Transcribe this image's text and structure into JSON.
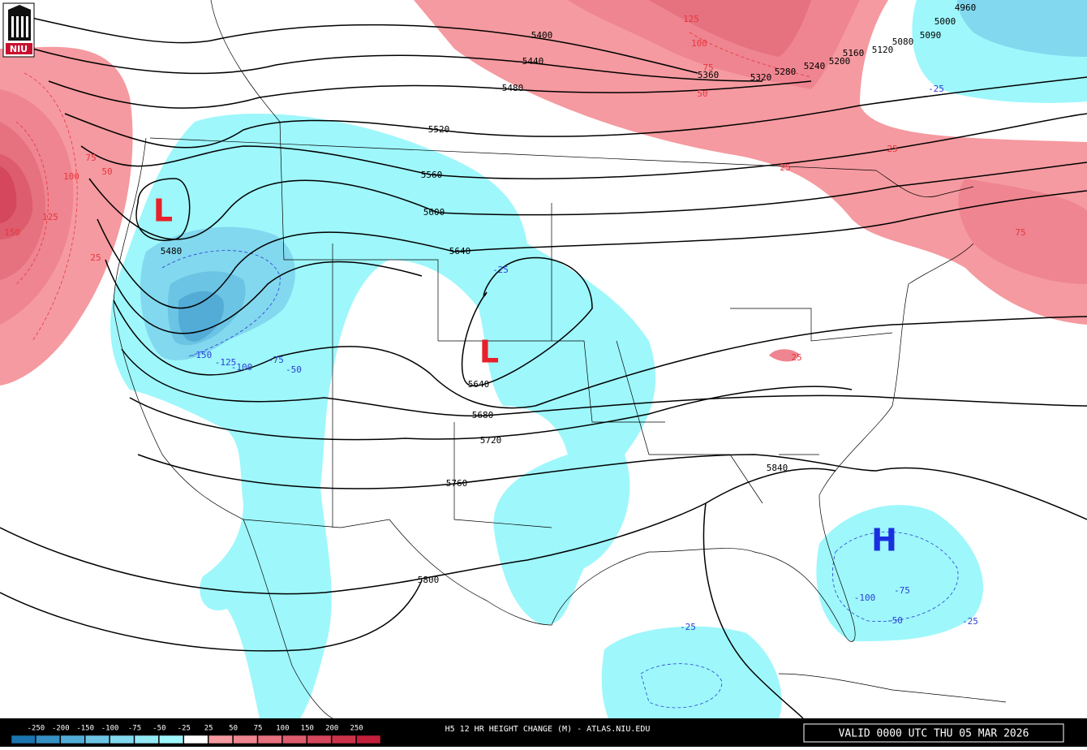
{
  "logo": "NIU",
  "title": "H5 12 HR HEIGHT CHANGE (M) - ATLAS.NIU.EDU",
  "valid_time": "VALID 0000 UTC THU 05 MAR 2026",
  "legend": {
    "labels": [
      -250,
      -200,
      -150,
      -100,
      -75,
      -50,
      -25,
      25,
      50,
      75,
      100,
      150,
      200,
      250
    ],
    "colors": [
      "#1b74ad",
      "#3590c4",
      "#52acd6",
      "#6cc4e4",
      "#82d8ee",
      "#93e8f5",
      "#9ef7fb",
      "#ffffff",
      "#f59aa0",
      "#ee8590",
      "#e6717f",
      "#dd5c6d",
      "#d4475c",
      "#cb334b",
      "#c21f3a"
    ]
  },
  "height_contour_labels": [
    5400,
    5440,
    5480,
    5520,
    5560,
    5600,
    5640,
    5480,
    5640,
    5680,
    5720,
    5760,
    5800,
    5840,
    5360,
    5320,
    5280,
    5240,
    5200,
    5160,
    5120,
    5080,
    5090,
    5000,
    4960
  ],
  "height_change_labels": [
    125,
    100,
    75,
    50,
    25,
    25,
    75,
    150,
    125,
    100,
    75,
    50,
    25,
    25,
    -25,
    -150,
    -125,
    -100,
    -75,
    -50,
    -25,
    -100,
    -75,
    -50,
    -25,
    -25
  ],
  "pressure_centers": [
    "L",
    "L",
    "H"
  ]
}
